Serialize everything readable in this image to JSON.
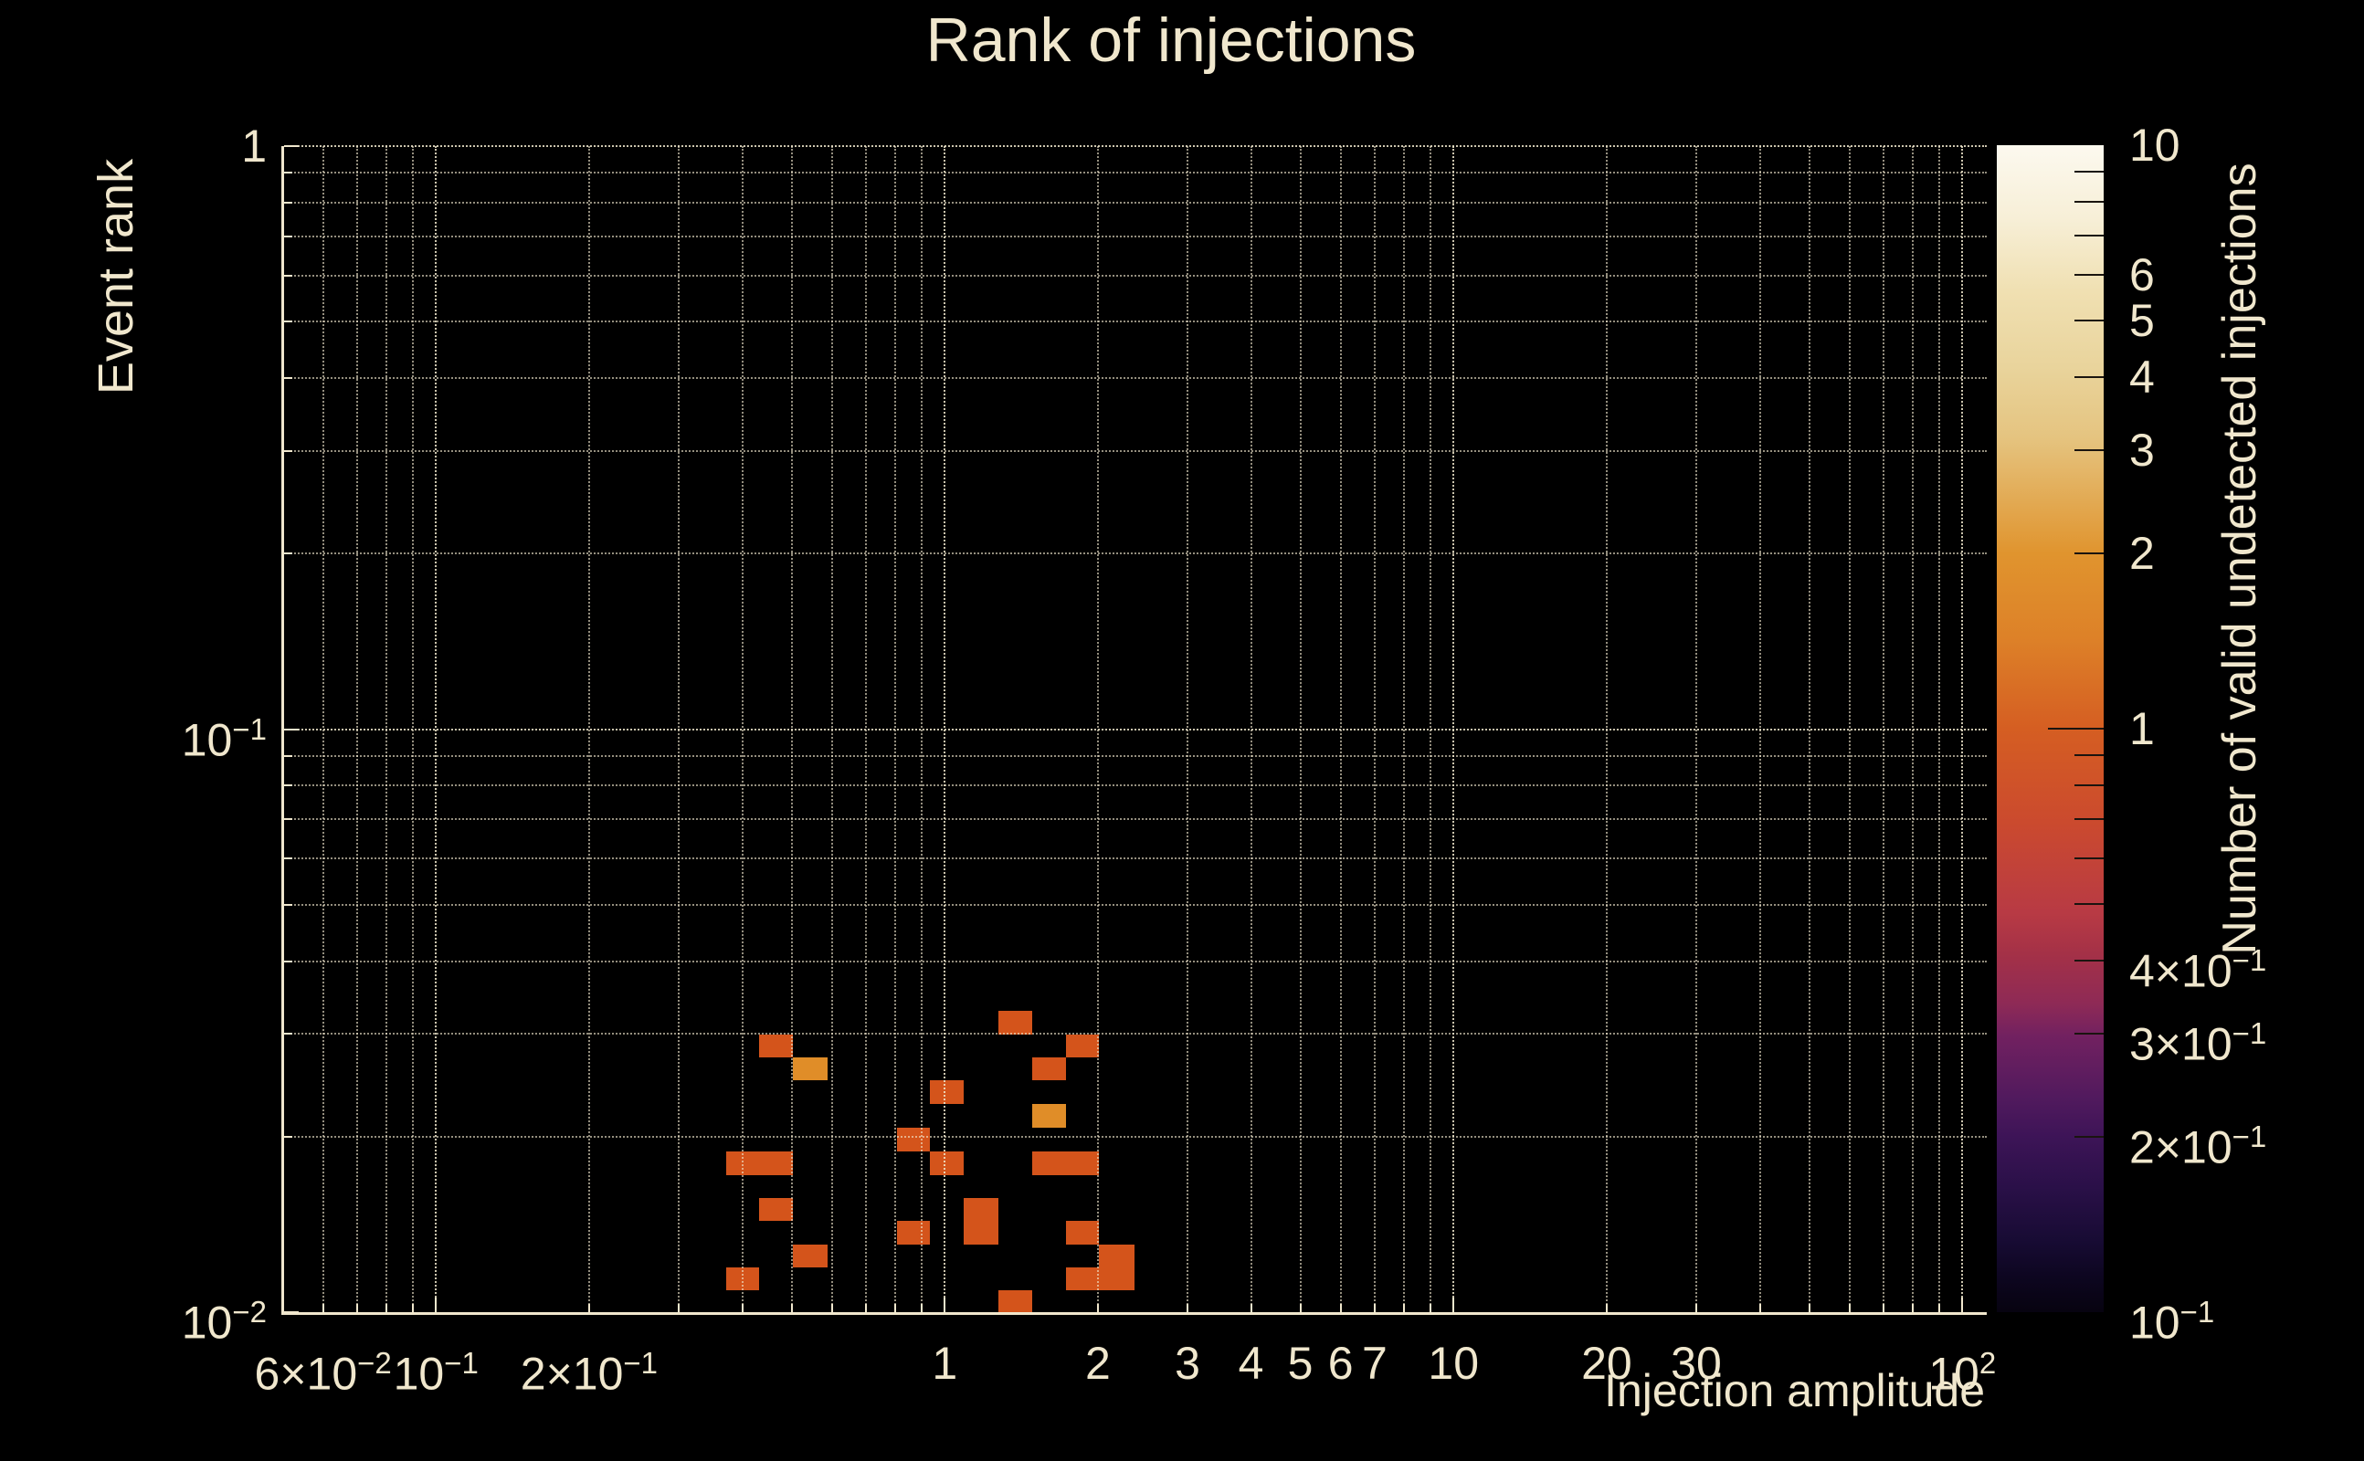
{
  "figure": {
    "background": "#000000",
    "text_color": "#f0e7cd"
  },
  "chart_data": {
    "type": "heatmap",
    "title": "Rank of injections",
    "xlabel": "Injection amplitude",
    "ylabel": "Event rank",
    "colorbar_label": "Number of valid undetected injections",
    "x_axis": {
      "scale": "log",
      "min": 0.0503,
      "max": 111.7,
      "grid": true,
      "gridline_values": [
        0.06,
        0.07,
        0.08,
        0.09,
        0.1,
        0.2,
        0.3,
        0.4,
        0.5,
        0.6,
        0.7,
        0.8,
        0.9,
        1,
        2,
        3,
        4,
        5,
        6,
        7,
        8,
        9,
        10,
        20,
        30,
        40,
        50,
        60,
        70,
        80,
        90,
        100
      ],
      "major_values": [
        0.1,
        1,
        10,
        100
      ],
      "labeled_ticks": [
        {
          "v": 0.06,
          "label": "6×10^-2"
        },
        {
          "v": 0.1,
          "label": "10^-1"
        },
        {
          "v": 0.2,
          "label": "2×10^-1"
        },
        {
          "v": 1,
          "label": "1"
        },
        {
          "v": 2,
          "label": "2"
        },
        {
          "v": 3,
          "label": "3"
        },
        {
          "v": 4,
          "label": "4"
        },
        {
          "v": 5,
          "label": "5"
        },
        {
          "v": 6,
          "label": "6"
        },
        {
          "v": 7,
          "label": "7"
        },
        {
          "v": 10,
          "label": "10"
        },
        {
          "v": 20,
          "label": "20"
        },
        {
          "v": 30,
          "label": "30"
        },
        {
          "v": 100,
          "label": "10^2"
        }
      ]
    },
    "y_axis": {
      "scale": "log",
      "min": 0.01,
      "max": 1,
      "grid": true,
      "gridline_values": [
        0.02,
        0.03,
        0.04,
        0.05,
        0.06,
        0.07,
        0.08,
        0.09,
        0.1,
        0.2,
        0.3,
        0.4,
        0.5,
        0.6,
        0.7,
        0.8,
        0.9,
        1
      ],
      "major_values": [
        0.01,
        0.1,
        1
      ],
      "labeled_ticks": [
        {
          "v": 1,
          "label": "1"
        },
        {
          "v": 0.1,
          "label": "10^-1"
        },
        {
          "v": 0.01,
          "label": "10^-2"
        }
      ]
    },
    "colorbar": {
      "scale": "log",
      "min": 0.1,
      "max": 10,
      "minor_tick_values": [
        9,
        8,
        7,
        6,
        5,
        4,
        3,
        2,
        0.9,
        0.8,
        0.7,
        0.6,
        0.5,
        0.4,
        0.3,
        0.2
      ],
      "major_tick_values": [
        1
      ],
      "labeled_ticks": [
        {
          "v": 10,
          "label": "10"
        },
        {
          "v": 6,
          "label": "6"
        },
        {
          "v": 5,
          "label": "5"
        },
        {
          "v": 4,
          "label": "4"
        },
        {
          "v": 3,
          "label": "3"
        },
        {
          "v": 2,
          "label": "2"
        },
        {
          "v": 1,
          "label": "1"
        },
        {
          "v": 0.4,
          "label": "4×10^-1"
        },
        {
          "v": 0.3,
          "label": "3×10^-1"
        },
        {
          "v": 0.2,
          "label": "2×10^-1"
        },
        {
          "v": 0.1,
          "label": "10^-1"
        }
      ],
      "gradient_stops_bottom_to_top": [
        [
          0.0,
          "#070310"
        ],
        [
          0.03,
          "#0d0620"
        ],
        [
          0.06,
          "#170b33"
        ],
        [
          0.107,
          "#2a1048"
        ],
        [
          0.15,
          "#3d1457"
        ],
        [
          0.185,
          "#521a5e"
        ],
        [
          0.237,
          "#722160"
        ],
        [
          0.264,
          "#8e2a56"
        ],
        [
          0.307,
          "#a43147"
        ],
        [
          0.342,
          "#b83a44"
        ],
        [
          0.42,
          "#cb4a2e"
        ],
        [
          0.5,
          "#d55e22"
        ],
        [
          0.577,
          "#dd8128"
        ],
        [
          0.65,
          "#e0942e"
        ],
        [
          0.75,
          "#e5c480"
        ],
        [
          0.81,
          "#e9d49c"
        ],
        [
          0.875,
          "#f0e0b2"
        ],
        [
          0.937,
          "#f7efd7"
        ],
        [
          1.0,
          "#fcf9ef"
        ]
      ]
    },
    "count_colors": {
      "1": "#d4541b",
      "2": "#e08d28"
    },
    "cells": [
      {
        "x0": 0.4315,
        "x1": 0.5034,
        "y0": 0.02732,
        "y1": 0.02995,
        "count": 1
      },
      {
        "x0": 0.5034,
        "x1": 0.5875,
        "y0": 0.02495,
        "y1": 0.02732,
        "count": 2
      },
      {
        "x0": 1.273,
        "x1": 1.486,
        "y0": 0.02995,
        "y1": 0.03291,
        "count": 1
      },
      {
        "x0": 1.729,
        "x1": 2.011,
        "y0": 0.02732,
        "y1": 0.02995,
        "count": 1
      },
      {
        "x0": 1.486,
        "x1": 1.729,
        "y0": 0.02495,
        "y1": 0.02732,
        "count": 1
      },
      {
        "x0": 0.9361,
        "x1": 1.089,
        "y0": 0.02278,
        "y1": 0.02495,
        "count": 1
      },
      {
        "x0": 1.486,
        "x1": 1.729,
        "y0": 0.02072,
        "y1": 0.02278,
        "count": 2
      },
      {
        "x0": 0.8047,
        "x1": 0.9361,
        "y0": 0.01886,
        "y1": 0.02072,
        "count": 1
      },
      {
        "x0": 0.372,
        "x1": 0.5034,
        "y0": 0.01719,
        "y1": 0.01886,
        "count": 1
      },
      {
        "x0": 0.9361,
        "x1": 1.089,
        "y0": 0.01719,
        "y1": 0.01886,
        "count": 1
      },
      {
        "x0": 1.486,
        "x1": 2.011,
        "y0": 0.01719,
        "y1": 0.01886,
        "count": 1
      },
      {
        "x0": 0.4315,
        "x1": 0.5034,
        "y0": 0.01436,
        "y1": 0.01571,
        "count": 1
      },
      {
        "x0": 1.089,
        "x1": 1.273,
        "y0": 0.01307,
        "y1": 0.01571,
        "count": 1
      },
      {
        "x0": 0.8047,
        "x1": 0.9361,
        "y0": 0.01307,
        "y1": 0.01436,
        "count": 1
      },
      {
        "x0": 1.729,
        "x1": 2.011,
        "y0": 0.01307,
        "y1": 0.01436,
        "count": 1
      },
      {
        "x0": 0.5034,
        "x1": 0.5875,
        "y0": 0.01192,
        "y1": 0.01307,
        "count": 1
      },
      {
        "x0": 2.011,
        "x1": 2.357,
        "y0": 0.01089,
        "y1": 0.01307,
        "count": 1
      },
      {
        "x0": 0.372,
        "x1": 0.4315,
        "y0": 0.01089,
        "y1": 0.01192,
        "count": 1
      },
      {
        "x0": 1.729,
        "x1": 2.011,
        "y0": 0.01089,
        "y1": 0.01192,
        "count": 1
      },
      {
        "x0": 1.273,
        "x1": 1.486,
        "y0": 0.01001,
        "y1": 0.01089,
        "count": 1
      }
    ]
  }
}
